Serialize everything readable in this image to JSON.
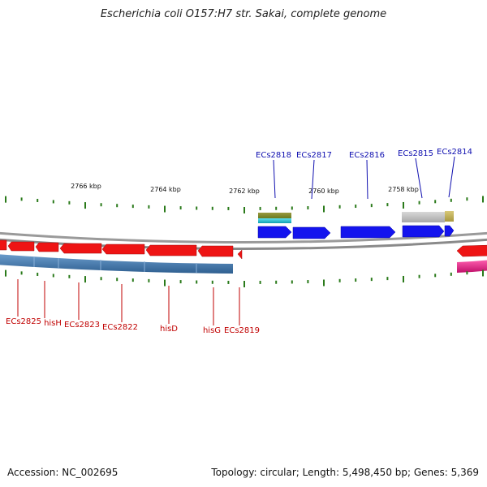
{
  "title": "Escherichia coli O157:H7 str. Sakai, complete genome",
  "footer": {
    "accession": "Accession: NC_002695",
    "summary": "Topology: circular; Length: 5,498,450 bp; Genes: 5,369"
  },
  "ruler": {
    "ticks": [
      {
        "label": "2766 kbp",
        "kbp": 2766
      },
      {
        "label": "2764 kbp",
        "kbp": 2764
      },
      {
        "label": "2762 kbp",
        "kbp": 2762
      },
      {
        "label": "2760 kbp",
        "kbp": 2760
      },
      {
        "label": "2758 kbp",
        "kbp": 2758
      }
    ]
  },
  "colors": {
    "forward_cds": "#1010e8",
    "reverse_cds": "#e81010",
    "forward_label": "#1010b0",
    "reverse_label": "#c00000",
    "backbone": "#888888",
    "tick": "#2a7a1a",
    "reverse_band": "#4a7fb0",
    "pink_band": "#e8208a",
    "olive_band": "#8a8a3a",
    "cyan_band": "#30c0d0",
    "grey_band": "#b8b8b8",
    "khaki_band": "#c0b060"
  },
  "forward_genes": [
    {
      "name": "ECs2818"
    },
    {
      "name": "ECs2817"
    },
    {
      "name": "ECs2816"
    },
    {
      "name": "ECs2815"
    },
    {
      "name": "ECs2814"
    }
  ],
  "reverse_genes": [
    {
      "name": "ECs2825"
    },
    {
      "name": "hisH"
    },
    {
      "name": "ECs2823"
    },
    {
      "name": "ECs2822"
    },
    {
      "name": "hisD"
    },
    {
      "name": "hisG"
    },
    {
      "name": "ECs2819"
    }
  ]
}
